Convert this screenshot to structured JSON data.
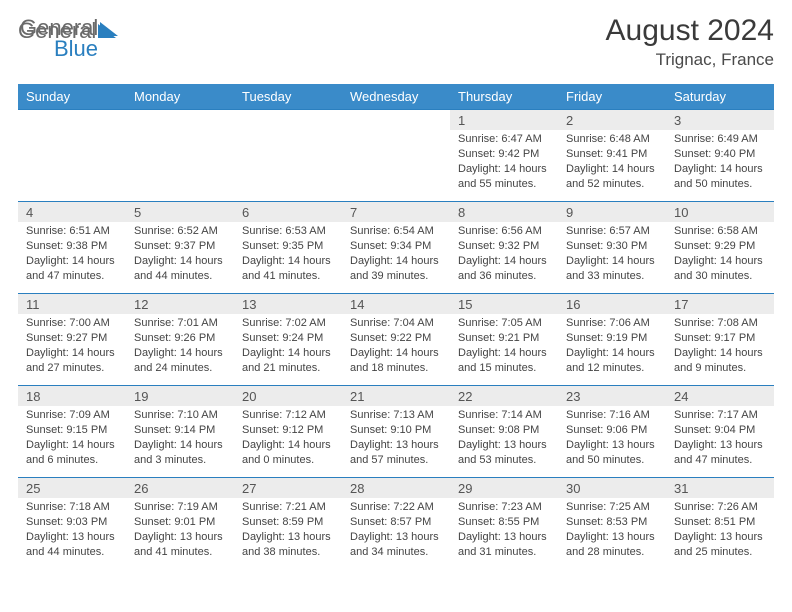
{
  "brand": {
    "part1": "General",
    "part2": "Blue"
  },
  "title": "August 2024",
  "location": "Trignac, France",
  "day_headers": [
    "Sunday",
    "Monday",
    "Tuesday",
    "Wednesday",
    "Thursday",
    "Friday",
    "Saturday"
  ],
  "colors": {
    "header_bg": "#3a8bc9",
    "header_text": "#ffffff",
    "daynum_bg": "#ececec",
    "cell_border": "#2a7fbf",
    "brand_grey": "#6a6a6a",
    "brand_blue": "#2a7fbf",
    "body_text": "#444444",
    "background": "#ffffff"
  },
  "typography": {
    "title_fontsize": 30,
    "location_fontsize": 17,
    "header_fontsize": 13,
    "daynum_fontsize": 13,
    "cell_fontsize": 11
  },
  "layout": {
    "columns": 7,
    "rows": 5,
    "first_weekday_index": 4
  },
  "days": [
    {
      "n": "1",
      "sr": "6:47 AM",
      "ss": "9:42 PM",
      "dl": "14 hours and 55 minutes."
    },
    {
      "n": "2",
      "sr": "6:48 AM",
      "ss": "9:41 PM",
      "dl": "14 hours and 52 minutes."
    },
    {
      "n": "3",
      "sr": "6:49 AM",
      "ss": "9:40 PM",
      "dl": "14 hours and 50 minutes."
    },
    {
      "n": "4",
      "sr": "6:51 AM",
      "ss": "9:38 PM",
      "dl": "14 hours and 47 minutes."
    },
    {
      "n": "5",
      "sr": "6:52 AM",
      "ss": "9:37 PM",
      "dl": "14 hours and 44 minutes."
    },
    {
      "n": "6",
      "sr": "6:53 AM",
      "ss": "9:35 PM",
      "dl": "14 hours and 41 minutes."
    },
    {
      "n": "7",
      "sr": "6:54 AM",
      "ss": "9:34 PM",
      "dl": "14 hours and 39 minutes."
    },
    {
      "n": "8",
      "sr": "6:56 AM",
      "ss": "9:32 PM",
      "dl": "14 hours and 36 minutes."
    },
    {
      "n": "9",
      "sr": "6:57 AM",
      "ss": "9:30 PM",
      "dl": "14 hours and 33 minutes."
    },
    {
      "n": "10",
      "sr": "6:58 AM",
      "ss": "9:29 PM",
      "dl": "14 hours and 30 minutes."
    },
    {
      "n": "11",
      "sr": "7:00 AM",
      "ss": "9:27 PM",
      "dl": "14 hours and 27 minutes."
    },
    {
      "n": "12",
      "sr": "7:01 AM",
      "ss": "9:26 PM",
      "dl": "14 hours and 24 minutes."
    },
    {
      "n": "13",
      "sr": "7:02 AM",
      "ss": "9:24 PM",
      "dl": "14 hours and 21 minutes."
    },
    {
      "n": "14",
      "sr": "7:04 AM",
      "ss": "9:22 PM",
      "dl": "14 hours and 18 minutes."
    },
    {
      "n": "15",
      "sr": "7:05 AM",
      "ss": "9:21 PM",
      "dl": "14 hours and 15 minutes."
    },
    {
      "n": "16",
      "sr": "7:06 AM",
      "ss": "9:19 PM",
      "dl": "14 hours and 12 minutes."
    },
    {
      "n": "17",
      "sr": "7:08 AM",
      "ss": "9:17 PM",
      "dl": "14 hours and 9 minutes."
    },
    {
      "n": "18",
      "sr": "7:09 AM",
      "ss": "9:15 PM",
      "dl": "14 hours and 6 minutes."
    },
    {
      "n": "19",
      "sr": "7:10 AM",
      "ss": "9:14 PM",
      "dl": "14 hours and 3 minutes."
    },
    {
      "n": "20",
      "sr": "7:12 AM",
      "ss": "9:12 PM",
      "dl": "14 hours and 0 minutes."
    },
    {
      "n": "21",
      "sr": "7:13 AM",
      "ss": "9:10 PM",
      "dl": "13 hours and 57 minutes."
    },
    {
      "n": "22",
      "sr": "7:14 AM",
      "ss": "9:08 PM",
      "dl": "13 hours and 53 minutes."
    },
    {
      "n": "23",
      "sr": "7:16 AM",
      "ss": "9:06 PM",
      "dl": "13 hours and 50 minutes."
    },
    {
      "n": "24",
      "sr": "7:17 AM",
      "ss": "9:04 PM",
      "dl": "13 hours and 47 minutes."
    },
    {
      "n": "25",
      "sr": "7:18 AM",
      "ss": "9:03 PM",
      "dl": "13 hours and 44 minutes."
    },
    {
      "n": "26",
      "sr": "7:19 AM",
      "ss": "9:01 PM",
      "dl": "13 hours and 41 minutes."
    },
    {
      "n": "27",
      "sr": "7:21 AM",
      "ss": "8:59 PM",
      "dl": "13 hours and 38 minutes."
    },
    {
      "n": "28",
      "sr": "7:22 AM",
      "ss": "8:57 PM",
      "dl": "13 hours and 34 minutes."
    },
    {
      "n": "29",
      "sr": "7:23 AM",
      "ss": "8:55 PM",
      "dl": "13 hours and 31 minutes."
    },
    {
      "n": "30",
      "sr": "7:25 AM",
      "ss": "8:53 PM",
      "dl": "13 hours and 28 minutes."
    },
    {
      "n": "31",
      "sr": "7:26 AM",
      "ss": "8:51 PM",
      "dl": "13 hours and 25 minutes."
    }
  ],
  "labels": {
    "sunrise_prefix": "Sunrise: ",
    "sunset_prefix": "Sunset: ",
    "daylight_prefix": "Daylight: "
  }
}
